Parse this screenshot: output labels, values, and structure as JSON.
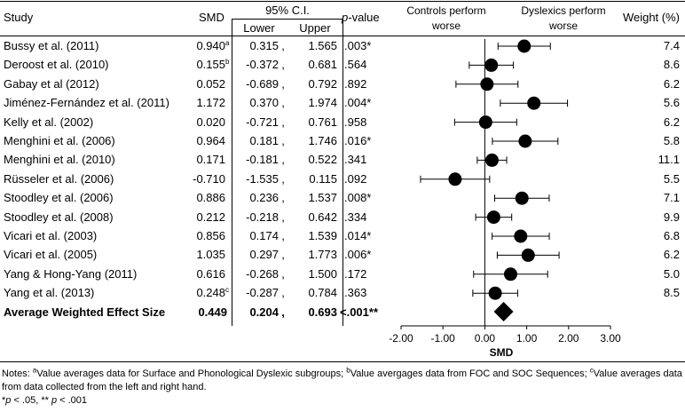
{
  "table": {
    "headers": {
      "study": "Study",
      "smd": "SMD",
      "ci": "95% C.I.",
      "lower": "Lower",
      "upper": "Upper",
      "p_prefix": "p",
      "p_suffix": "-value",
      "controls_line1": "Controls perform",
      "controls_line2": "worse",
      "dyslexics_line1": "Dyslexics perform",
      "dyslexics_line2": "worse",
      "weight": "Weight (%)"
    },
    "ci_separator": ",",
    "rows": [
      {
        "study": "Bussy et al. (2011)",
        "smd": "0.940",
        "sup": "a",
        "lower": "0.315",
        "upper": "1.565",
        "p": ".003*",
        "weight": "7.4"
      },
      {
        "study": "Deroost et al. (2010)",
        "smd": "0.155",
        "sup": "b",
        "lower": "-0.372",
        "upper": "0.681",
        "p": ".564",
        "weight": "8.6"
      },
      {
        "study": "Gabay et al (2012)",
        "smd": "0.052",
        "sup": "",
        "lower": "-0.689",
        "upper": "0.792",
        "p": ".892",
        "weight": "6.2"
      },
      {
        "study": "Jiménez-Fernández et al. (2011)",
        "smd": "1.172",
        "sup": "",
        "lower": "0.370",
        "upper": "1.974",
        "p": ".004*",
        "weight": "5.6"
      },
      {
        "study": "Kelly et al. (2002)",
        "smd": "0.020",
        "sup": "",
        "lower": "-0.721",
        "upper": "0.761",
        "p": ".958",
        "weight": "6.2"
      },
      {
        "study": "Menghini et al. (2006)",
        "smd": "0.964",
        "sup": "",
        "lower": "0.181",
        "upper": "1.746",
        "p": ".016*",
        "weight": "5.8"
      },
      {
        "study": "Menghini et al. (2010)",
        "smd": "0.171",
        "sup": "",
        "lower": "-0.181",
        "upper": "0.522",
        "p": ".341",
        "weight": "11.1"
      },
      {
        "study": "Rüsseler et al. (2006)",
        "smd": "-0.710",
        "sup": "",
        "lower": "-1.535",
        "upper": "0.115",
        "p": ".092",
        "weight": "5.5"
      },
      {
        "study": "Stoodley et al. (2006)",
        "smd": "0.886",
        "sup": "",
        "lower": "0.236",
        "upper": "1.537",
        "p": ".008*",
        "weight": "7.1"
      },
      {
        "study": "Stoodley et al. (2008)",
        "smd": "0.212",
        "sup": "",
        "lower": "-0.218",
        "upper": "0.642",
        "p": ".334",
        "weight": "9.9"
      },
      {
        "study": "Vicari et al. (2003)",
        "smd": "0.856",
        "sup": "",
        "lower": "0.174",
        "upper": "1.539",
        "p": ".014*",
        "weight": "6.8"
      },
      {
        "study": "Vicari et al. (2005)",
        "smd": "1.035",
        "sup": "",
        "lower": "0.297",
        "upper": "1.773",
        "p": ".006*",
        "weight": "6.2"
      },
      {
        "study": "Yang & Hong-Yang (2011)",
        "smd": "0.616",
        "sup": "",
        "lower": "-0.268",
        "upper": "1.500",
        "p": ".172",
        "weight": "5.0"
      },
      {
        "study": "Yang et al. (2013)",
        "smd": "0.248",
        "sup": "c",
        "lower": "-0.287",
        "upper": "0.784",
        "p": ".363",
        "weight": "8.5"
      }
    ],
    "summary": {
      "study": "Average Weighted Effect Size",
      "smd": "0.449",
      "lower": "0.204",
      "upper": "0.693",
      "p": "<.001**"
    }
  },
  "notes": {
    "label": "Notes: ",
    "a_mark": "a",
    "a_text": "Value averages data for Surface and Phonological Dyslexic subgroups; ",
    "b_mark": "b",
    "b_text": "Value avergages data from FOC and SOC Sequences; ",
    "c_mark": "c",
    "c_text": "Value averages data from data collected from the left and right hand.",
    "sig_star": "*",
    "sig_p1": "p",
    "sig_mid": " < .05, ** ",
    "sig_p2": "p",
    "sig_end": " < .001"
  },
  "chart_data": {
    "type": "forest",
    "xlabel": "SMD",
    "xlim": [
      -2.0,
      3.0
    ],
    "xticks": [
      -2.0,
      -1.0,
      0.0,
      1.0,
      2.0,
      3.0
    ],
    "xtick_labels": [
      "-2.00",
      "-1.00",
      "0.00",
      "1.00",
      "2.00",
      "3.00"
    ],
    "reference_line": 0.0,
    "points": [
      {
        "label": "Bussy et al. (2011)",
        "estimate": 0.94,
        "lower": 0.315,
        "upper": 1.565
      },
      {
        "label": "Deroost et al. (2010)",
        "estimate": 0.155,
        "lower": -0.372,
        "upper": 0.681
      },
      {
        "label": "Gabay et al (2012)",
        "estimate": 0.052,
        "lower": -0.689,
        "upper": 0.792
      },
      {
        "label": "Jiménez-Fernández et al. (2011)",
        "estimate": 1.172,
        "lower": 0.37,
        "upper": 1.974
      },
      {
        "label": "Kelly et al. (2002)",
        "estimate": 0.02,
        "lower": -0.721,
        "upper": 0.761
      },
      {
        "label": "Menghini et al. (2006)",
        "estimate": 0.964,
        "lower": 0.181,
        "upper": 1.746
      },
      {
        "label": "Menghini et al. (2010)",
        "estimate": 0.171,
        "lower": -0.181,
        "upper": 0.522
      },
      {
        "label": "Rüsseler et al. (2006)",
        "estimate": -0.71,
        "lower": -1.535,
        "upper": 0.115
      },
      {
        "label": "Stoodley et al. (2006)",
        "estimate": 0.886,
        "lower": 0.236,
        "upper": 1.537
      },
      {
        "label": "Stoodley et al. (2008)",
        "estimate": 0.212,
        "lower": -0.218,
        "upper": 0.642
      },
      {
        "label": "Vicari et al. (2003)",
        "estimate": 0.856,
        "lower": 0.174,
        "upper": 1.539
      },
      {
        "label": "Vicari et al. (2005)",
        "estimate": 1.035,
        "lower": 0.297,
        "upper": 1.773
      },
      {
        "label": "Yang & Hong-Yang (2011)",
        "estimate": 0.616,
        "lower": -0.268,
        "upper": 1.5
      },
      {
        "label": "Yang et al. (2013)",
        "estimate": 0.248,
        "lower": -0.287,
        "upper": 0.784
      }
    ],
    "summary": {
      "label": "Average Weighted Effect Size",
      "estimate": 0.449,
      "lower": 0.204,
      "upper": 0.693
    }
  }
}
